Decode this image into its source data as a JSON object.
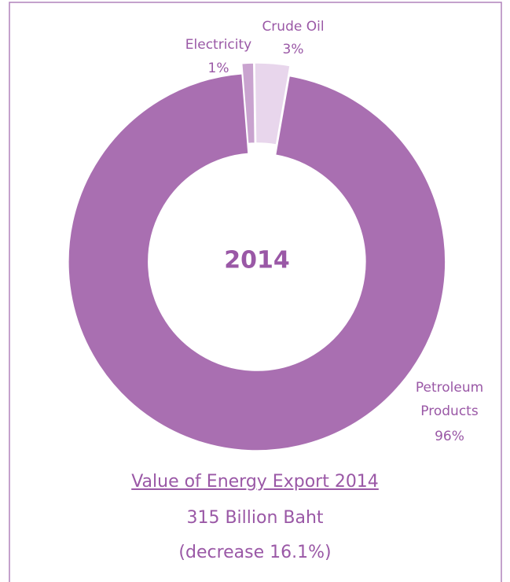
{
  "chart_data": {
    "type": "donut",
    "center_label": "2014",
    "categories": [
      "Electricity",
      "Crude Oil",
      "Petroleum Products"
    ],
    "values": [
      1,
      3,
      96
    ],
    "value_labels": [
      "1%",
      "3%",
      "96%"
    ],
    "colors": [
      "#c9a3cf",
      "#e8d6ec",
      "#a96fb1"
    ],
    "title": "Value of Energy Export 2014",
    "subtitle": "315 Billion Baht",
    "annotation": "(decrease 16.1%)"
  }
}
